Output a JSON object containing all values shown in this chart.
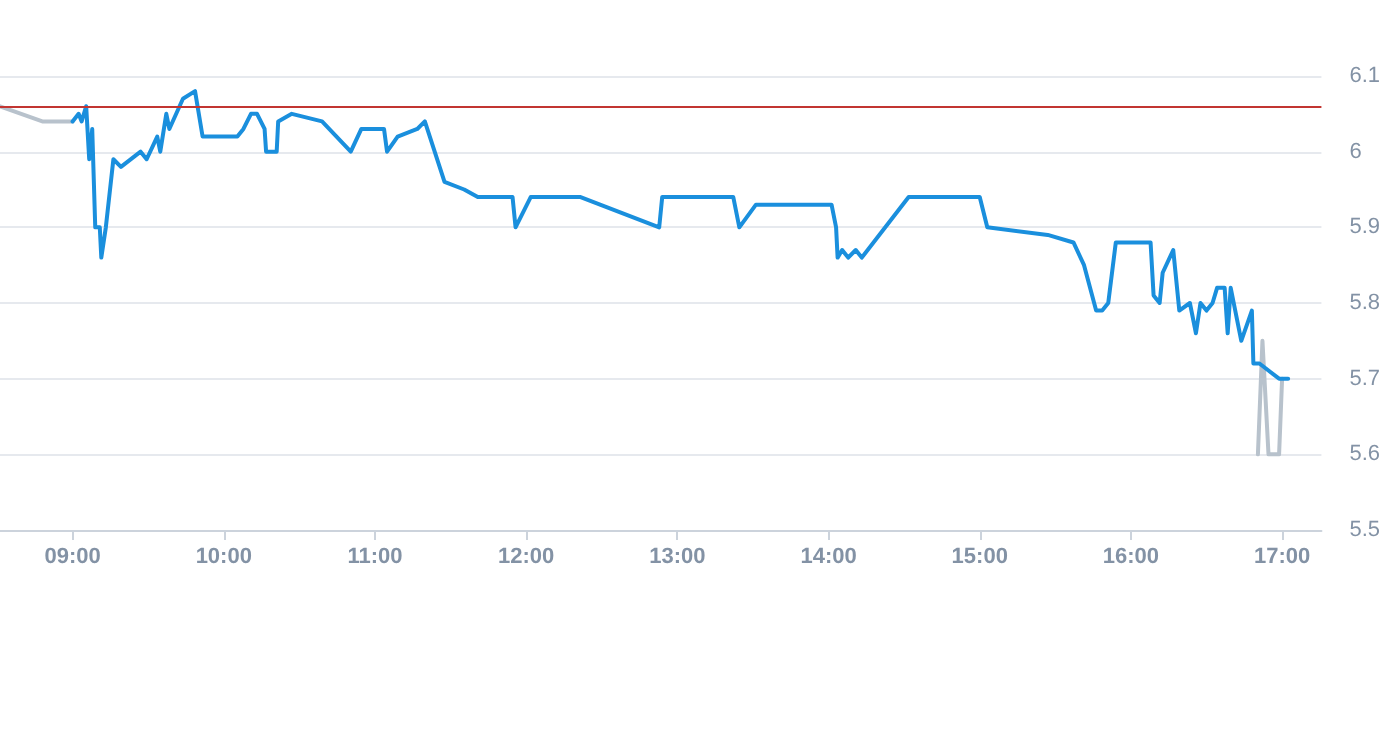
{
  "chart_data": {
    "type": "line",
    "xlim": [
      8.52,
      17.26
    ],
    "xticks": [
      {
        "value": 9,
        "label": "09:00"
      },
      {
        "value": 10,
        "label": "10:00"
      },
      {
        "value": 11,
        "label": "11:00"
      },
      {
        "value": 12,
        "label": "12:00"
      },
      {
        "value": 13,
        "label": "13:00"
      },
      {
        "value": 14,
        "label": "14:00"
      },
      {
        "value": 15,
        "label": "15:00"
      },
      {
        "value": 16,
        "label": "16:00"
      },
      {
        "value": 17,
        "label": "17:00"
      }
    ],
    "ylim": [
      5.5,
      6.1
    ],
    "yticks": [
      5.5,
      5.6,
      5.7,
      5.8,
      5.9,
      6,
      6.1
    ],
    "grid": "y",
    "marker": "none",
    "line_style": "solid",
    "ref_lines": [
      {
        "axis": "y",
        "value": 6.06,
        "color": "#c23531"
      }
    ],
    "series": [
      {
        "color": "#b8c2cc",
        "x": [
          8.52,
          8.8,
          9.0,
          12.0,
          16.84,
          16.87,
          16.91,
          16.98,
          17.0
        ],
        "values": [
          6.06,
          6.04,
          6.04,
          null,
          5.6,
          5.75,
          5.6,
          5.6,
          5.7
        ]
      },
      {
        "color": "#1a8fdd",
        "x": [
          9.0,
          9.04,
          9.06,
          9.09,
          9.11,
          9.13,
          9.15,
          9.18,
          9.19,
          9.22,
          9.27,
          9.32,
          9.45,
          9.49,
          9.56,
          9.58,
          9.62,
          9.64,
          9.73,
          9.81,
          9.86,
          10.09,
          10.13,
          10.18,
          10.22,
          10.27,
          10.28,
          10.35,
          10.36,
          10.45,
          10.65,
          10.84,
          10.91,
          11.06,
          11.08,
          11.15,
          11.28,
          11.33,
          11.46,
          11.59,
          11.68,
          11.91,
          11.93,
          12.03,
          12.36,
          12.88,
          12.9,
          13.37,
          13.41,
          13.52,
          14.02,
          14.05,
          14.06,
          14.09,
          14.13,
          14.18,
          14.22,
          14.53,
          15.0,
          15.05,
          15.45,
          15.62,
          15.69,
          15.77,
          15.81,
          15.85,
          15.9,
          16.13,
          16.15,
          16.19,
          16.21,
          16.28,
          16.32,
          16.39,
          16.43,
          16.46,
          16.5,
          16.54,
          16.57,
          16.62,
          16.64,
          16.66,
          16.73,
          16.8,
          16.81,
          16.85,
          16.98,
          17.04
        ],
        "values": [
          6.04,
          6.05,
          6.04,
          6.06,
          5.99,
          6.03,
          5.9,
          5.9,
          5.86,
          5.9,
          5.99,
          5.98,
          6.0,
          5.99,
          6.02,
          6.0,
          6.05,
          6.03,
          6.07,
          6.08,
          6.02,
          6.02,
          6.03,
          6.05,
          6.05,
          6.03,
          6.0,
          6.0,
          6.04,
          6.05,
          6.04,
          6.0,
          6.03,
          6.03,
          6.0,
          6.02,
          6.03,
          6.04,
          5.96,
          5.95,
          5.94,
          5.94,
          5.9,
          5.94,
          5.94,
          5.9,
          5.94,
          5.94,
          5.9,
          5.93,
          5.93,
          5.9,
          5.86,
          5.87,
          5.86,
          5.87,
          5.86,
          5.94,
          5.94,
          5.9,
          5.89,
          5.88,
          5.85,
          5.79,
          5.79,
          5.8,
          5.88,
          5.88,
          5.81,
          5.8,
          5.84,
          5.87,
          5.79,
          5.8,
          5.76,
          5.8,
          5.79,
          5.8,
          5.82,
          5.82,
          5.76,
          5.82,
          5.75,
          5.79,
          5.72,
          5.72,
          5.7,
          5.7
        ]
      }
    ]
  }
}
